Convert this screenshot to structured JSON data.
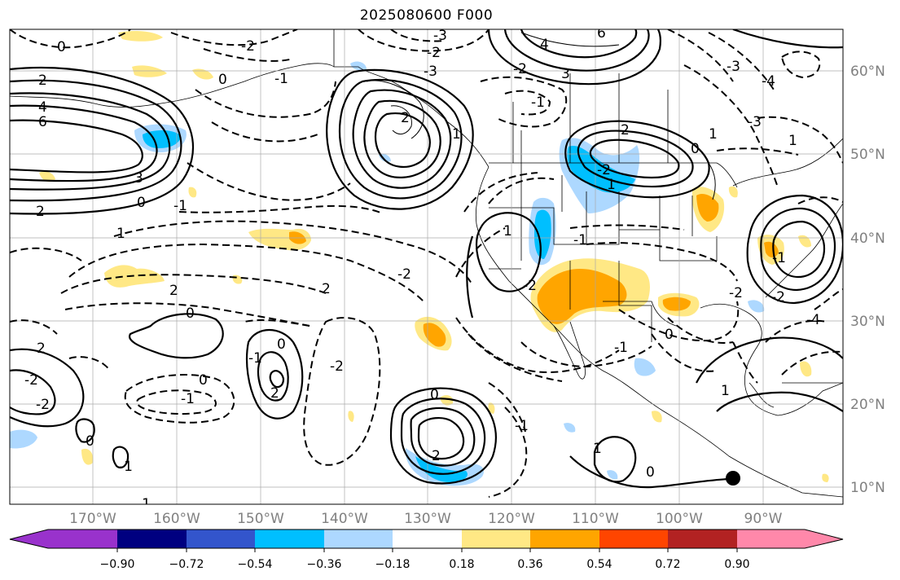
{
  "title": "2025080600 F000",
  "map": {
    "lon_labels": [
      "170°W",
      "160°W",
      "150°W",
      "140°W",
      "130°W",
      "120°W",
      "110°W",
      "100°W",
      "90°W"
    ],
    "lat_labels": [
      "60°N",
      "50°N",
      "40°N",
      "30°N",
      "20°N",
      "10°N"
    ],
    "contour_labels": [
      "0",
      "2",
      "4",
      "6",
      "3",
      "2",
      "0",
      "1",
      "-1",
      "-2",
      "0",
      "-1",
      "2",
      "1",
      "-2",
      "-3",
      "4",
      "6",
      "3",
      "-1",
      "-2",
      "-3",
      "2",
      "1",
      "0",
      "-2",
      "1",
      "0",
      "1",
      "-1",
      "-2",
      "2",
      "2",
      "-2",
      "-1",
      "2",
      "0",
      "2",
      "0",
      "-2",
      "-1",
      "-2",
      "0",
      "-1",
      "-1",
      "-1",
      "1",
      "2",
      "0",
      "0",
      "1",
      "-1",
      "0",
      "-2",
      "-2",
      "-2",
      "-4",
      "-1",
      "-4",
      "-3",
      "1",
      "-3"
    ],
    "marker": "black-dot"
  },
  "colorbar": {
    "colors": [
      "#9932cc",
      "#000080",
      "#3355cc",
      "#00bfff",
      "#add8ff",
      "#ffffff",
      "#ffe885",
      "#ffa500",
      "#ff4500",
      "#b22222",
      "#ff88aa"
    ],
    "tick_labels": [
      "−0.90",
      "−0.72",
      "−0.54",
      "−0.36",
      "−0.18",
      "0.18",
      "0.36",
      "0.54",
      "0.72",
      "0.90"
    ]
  }
}
